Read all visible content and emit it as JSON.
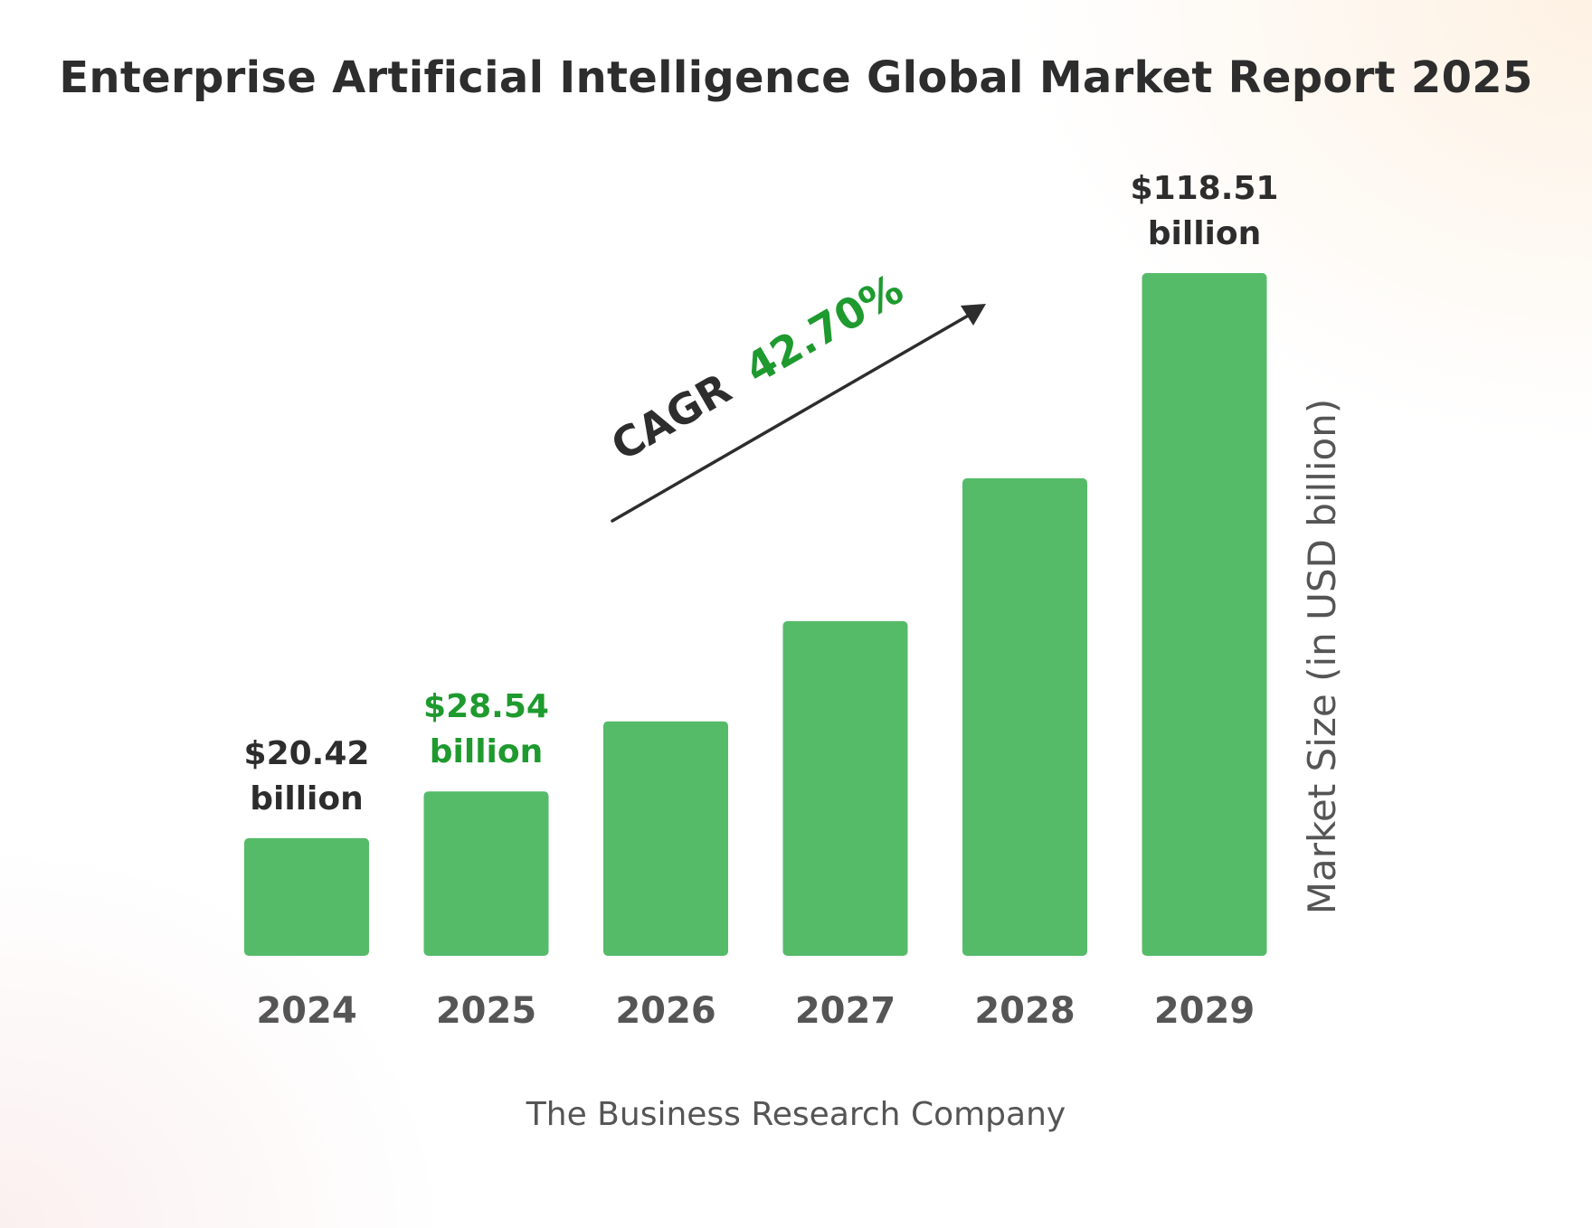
{
  "colors": {
    "bar": "#55bb69",
    "accent_green": "#1e9a2e",
    "text_dark": "#2d2d2d",
    "text_grey": "#555555"
  },
  "chart_data": {
    "type": "bar",
    "title": "Enterprise Artificial Intelligence Global Market Report 2025",
    "categories": [
      "2024",
      "2025",
      "2026",
      "2027",
      "2028",
      "2029"
    ],
    "values": [
      20.42,
      28.54,
      40.7,
      58.1,
      82.9,
      118.51
    ],
    "ylabel": "Market Size (in USD billion)",
    "xlabel": "",
    "ylim": [
      0,
      118.51
    ],
    "grid": false,
    "legend": "none",
    "data_labels": [
      {
        "category": "2024",
        "line1": "$20.42",
        "line2": "billion",
        "color": "#2d2d2d"
      },
      {
        "category": "2025",
        "line1": "$28.54",
        "line2": "billion",
        "color": "#1e9a2e"
      },
      {
        "category": "2029",
        "line1": "$118.51",
        "line2": "billion",
        "color": "#2d2d2d"
      }
    ],
    "annotation": {
      "cagr_label": "CAGR",
      "cagr_value": "42.70%"
    }
  },
  "source": "The Business Research Company"
}
